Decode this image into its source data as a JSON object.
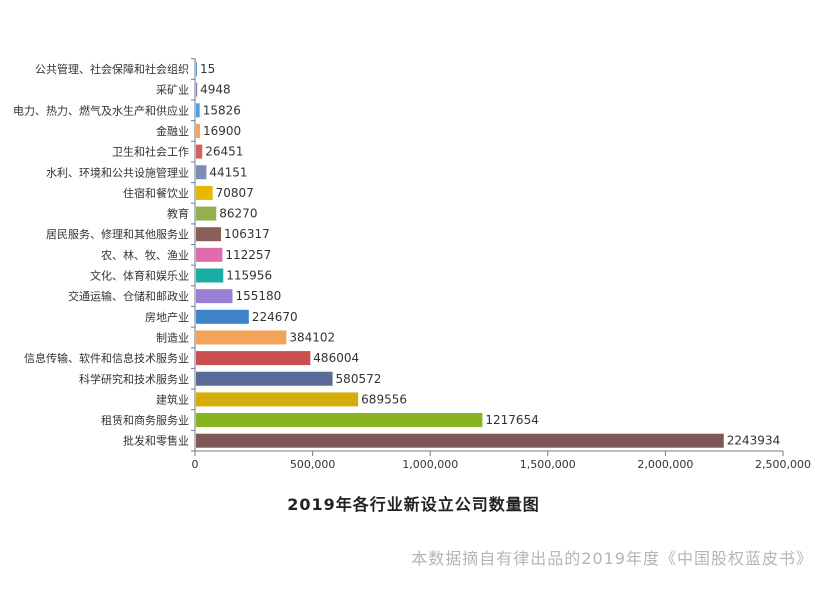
{
  "chart_data": {
    "type": "bar",
    "orientation": "horizontal",
    "title": "2019年各行业新设立公司数量图",
    "categories": [
      "公共管理、社会保障和社会组织",
      "采矿业",
      "电力、热力、燃气及水生产和供应业",
      "金融业",
      "卫生和社会工作",
      "水利、环境和公共设施管理业",
      "住宿和餐饮业",
      "教育",
      "居民服务、修理和其他服务业",
      "农、林、牧、渔业",
      "文化、体育和娱乐业",
      "交通运输、仓储和邮政业",
      "房地产业",
      "制造业",
      "信息传输、软件和信息技术服务业",
      "科学研究和技术服务业",
      "建筑业",
      "租赁和商务服务业",
      "批发和零售业"
    ],
    "values": [
      15,
      4948,
      15826,
      16900,
      26451,
      44151,
      70807,
      86270,
      106317,
      112257,
      115956,
      155180,
      224670,
      384102,
      486004,
      580572,
      689556,
      1217654,
      2243934
    ],
    "value_labels": [
      "15",
      "4948",
      "15826",
      "16900",
      "26451",
      "44151",
      "70807",
      "86270",
      "106317",
      "112257",
      "115956",
      "155180",
      "224670",
      "384102",
      "486004",
      "580572",
      "689556",
      "1217654",
      "2243934"
    ],
    "colors": [
      "#5b9bd5",
      "#8e7bbf",
      "#4aa3df",
      "#f4a460",
      "#d95f5f",
      "#7b8fb5",
      "#e6b800",
      "#93b051",
      "#8b5e5a",
      "#e06cb0",
      "#1aada3",
      "#9b7fd4",
      "#3f83c9",
      "#f4a35a",
      "#c9504f",
      "#5b6b99",
      "#d4ad0b",
      "#87b520",
      "#7d5857"
    ],
    "x_ticks": [
      0,
      500000,
      1000000,
      1500000,
      2000000,
      2500000
    ],
    "x_tick_labels": [
      "0",
      "500,000",
      "1,000,000",
      "1,500,000",
      "2,000,000",
      "2,500,000"
    ],
    "xlim": [
      0,
      2500000
    ],
    "grid": false,
    "legend": "none"
  },
  "source_note": "本数据摘自有律出品的2019年度《中国股权蓝皮书》"
}
